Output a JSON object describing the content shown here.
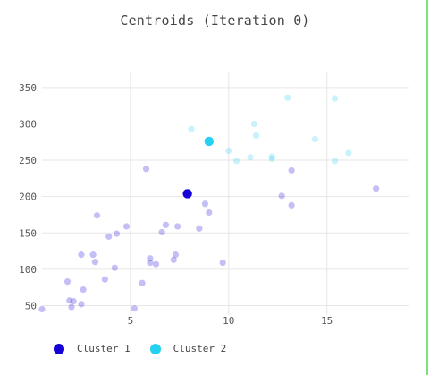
{
  "chart_data": {
    "type": "scatter",
    "title": "Centroids (Iteration 0)",
    "xlabel": "",
    "ylabel": "",
    "xlim": [
      0.5,
      19.2
    ],
    "ylim": [
      37,
      372
    ],
    "x_ticks": [
      5,
      10,
      15
    ],
    "y_ticks": [
      50,
      100,
      150,
      200,
      250,
      300,
      350
    ],
    "x_tick_labels": [
      "5",
      "10",
      "15"
    ],
    "y_tick_labels": [
      "50",
      "100",
      "150",
      "200",
      "250",
      "300",
      "350"
    ],
    "grid": true,
    "legend_position": "bottom-left",
    "series": [
      {
        "name": "Cluster 1",
        "color": "#1500d6",
        "points": [
          [
            0.5,
            45
          ],
          [
            1.8,
            83
          ],
          [
            1.9,
            57
          ],
          [
            2.1,
            56
          ],
          [
            2.0,
            48
          ],
          [
            2.5,
            52
          ],
          [
            2.5,
            120
          ],
          [
            2.6,
            72
          ],
          [
            3.1,
            120
          ],
          [
            3.2,
            110
          ],
          [
            3.3,
            174
          ],
          [
            3.7,
            86
          ],
          [
            3.9,
            145
          ],
          [
            4.2,
            102
          ],
          [
            4.3,
            149
          ],
          [
            4.8,
            159
          ],
          [
            5.2,
            46
          ],
          [
            5.6,
            81
          ],
          [
            5.8,
            238
          ],
          [
            6.0,
            115
          ],
          [
            6.0,
            109
          ],
          [
            6.3,
            107
          ],
          [
            6.6,
            151
          ],
          [
            6.8,
            161
          ],
          [
            7.2,
            113
          ],
          [
            7.3,
            120
          ],
          [
            7.4,
            159
          ],
          [
            8.5,
            156
          ],
          [
            8.8,
            190
          ],
          [
            9.0,
            178
          ],
          [
            9.7,
            109
          ],
          [
            12.7,
            201
          ],
          [
            13.2,
            236
          ],
          [
            13.2,
            188
          ],
          [
            17.5,
            211
          ]
        ]
      },
      {
        "name": "Cluster 2",
        "color": "#25d1f0",
        "points": [
          [
            8.1,
            293
          ],
          [
            10.0,
            263
          ],
          [
            10.4,
            249
          ],
          [
            11.1,
            254
          ],
          [
            11.3,
            300
          ],
          [
            11.4,
            284
          ],
          [
            12.2,
            255
          ],
          [
            12.2,
            252
          ],
          [
            13.0,
            336
          ],
          [
            14.4,
            279
          ],
          [
            15.4,
            249
          ],
          [
            15.4,
            335
          ],
          [
            16.1,
            260
          ]
        ]
      }
    ],
    "centroids": [
      {
        "name": "Cluster 1",
        "x": 7.9,
        "y": 204,
        "color": "#1500d6"
      },
      {
        "name": "Cluster 2",
        "x": 9.0,
        "y": 276,
        "color": "#25d1f0"
      }
    ]
  }
}
